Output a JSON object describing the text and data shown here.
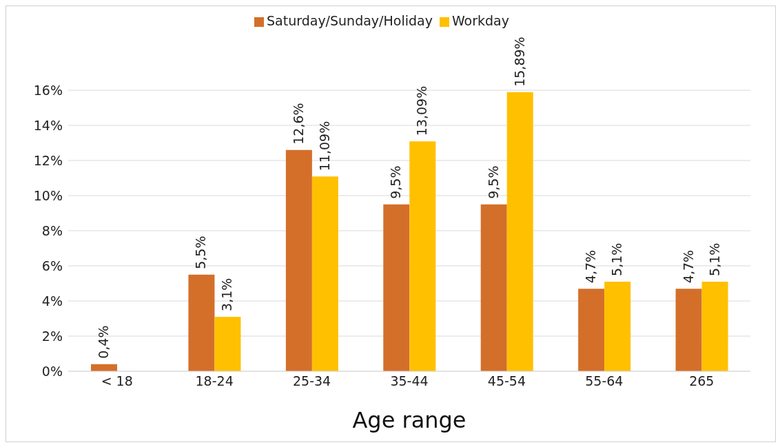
{
  "chart_data": {
    "type": "bar",
    "xlabel": "Age range",
    "categories": [
      "< 18",
      "18-24",
      "25-34",
      "35-44",
      "45-54",
      "55-64",
      "265"
    ],
    "series": [
      {
        "name": "Saturday/Sunday/Holiday",
        "color": "#d46f2a",
        "values": [
          0.4,
          5.5,
          12.6,
          9.5,
          9.5,
          4.7,
          4.7
        ],
        "value_labels": [
          "0,4%",
          "5,5%",
          "12,6%",
          "9,5%",
          "9,5%",
          "4,7%",
          "4,7%"
        ]
      },
      {
        "name": "Workday",
        "color": "#ffc000",
        "values": [
          null,
          3.1,
          11.09,
          13.09,
          15.89,
          5.1,
          5.1
        ],
        "value_labels": [
          null,
          "3,1%",
          "11,09%",
          "13,09%",
          "15,89%",
          "5,1%",
          "5,1%"
        ]
      }
    ],
    "ylim": [
      0,
      16
    ],
    "yticks": [
      {
        "value": 0,
        "label": "0%"
      },
      {
        "value": 2,
        "label": "2%"
      },
      {
        "value": 4,
        "label": "4%"
      },
      {
        "value": 6,
        "label": "6%"
      },
      {
        "value": 8,
        "label": "8%"
      },
      {
        "value": 10,
        "label": "10%"
      },
      {
        "value": 12,
        "label": "12%"
      },
      {
        "value": 14,
        "label": "14%"
      },
      {
        "value": 16,
        "label": "16%"
      }
    ],
    "grid": "y",
    "legend": "top"
  }
}
